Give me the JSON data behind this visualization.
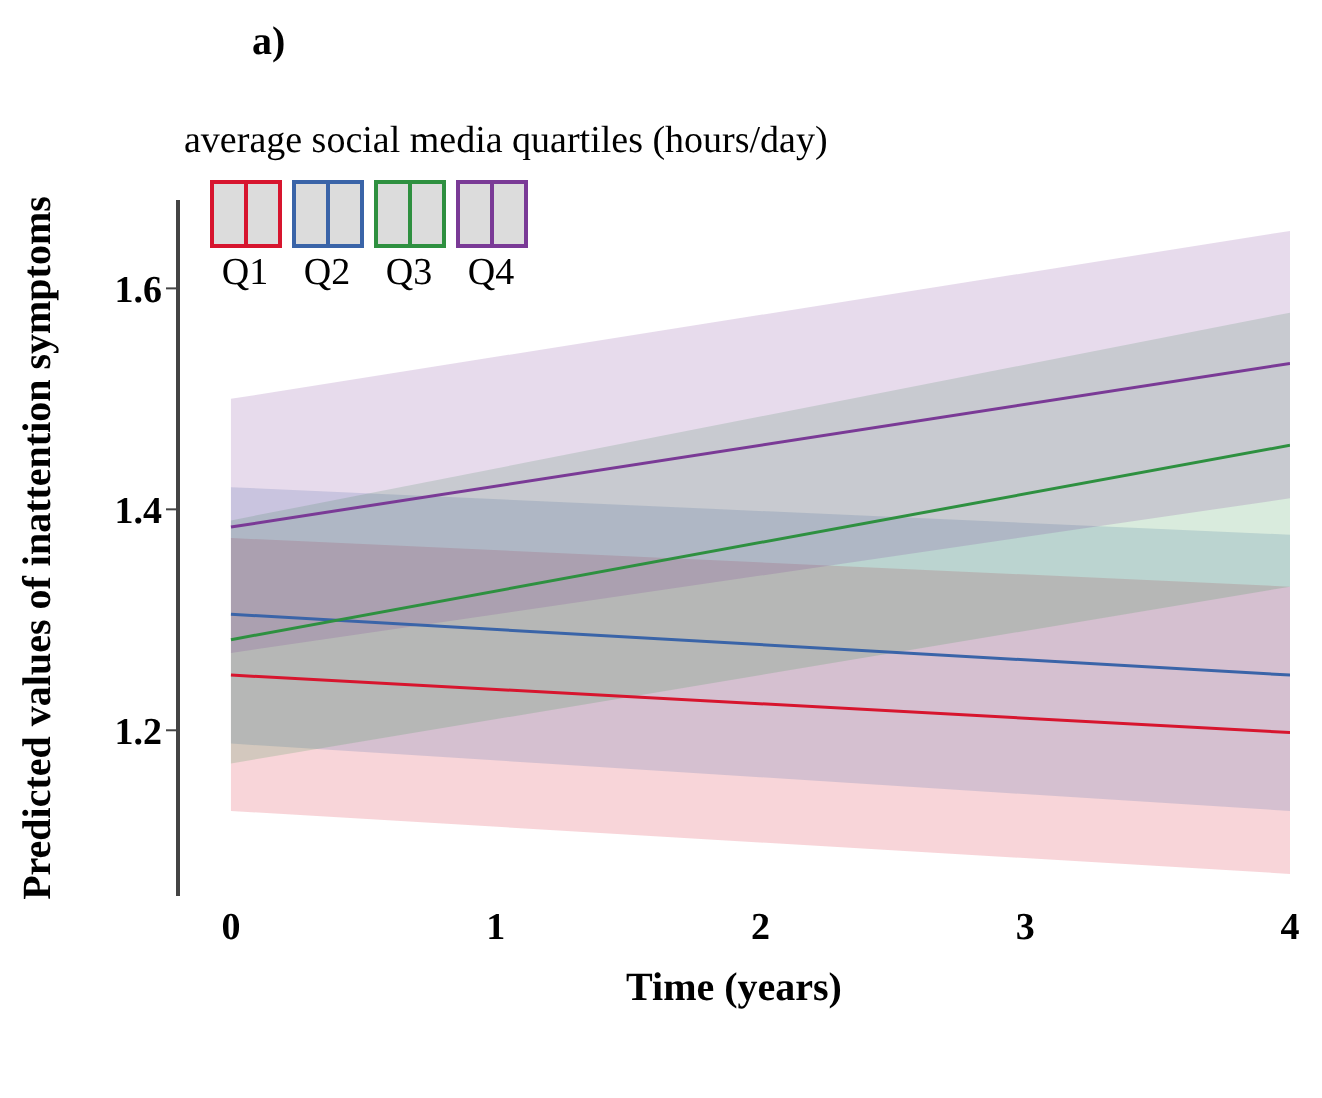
{
  "chart_data": {
    "type": "line",
    "title": "a)",
    "xlabel": "Time (years)",
    "ylabel": "Predicted values of inattention symptoms",
    "legend_title": "average social media quartiles (hours/day)",
    "legend": "top left",
    "marker": "none",
    "line_style": "solid",
    "x": [
      0,
      4
    ],
    "xlim": [
      -0.2,
      4
    ],
    "xticks": [
      0,
      1,
      2,
      3,
      4
    ],
    "ylim": [
      1.05,
      1.68
    ],
    "yticks": [
      1.2,
      1.4,
      1.6
    ],
    "series": [
      {
        "name": "Q1",
        "color": "#d7152e",
        "values": [
          1.25,
          1.198
        ],
        "lower": [
          1.127,
          1.07
        ],
        "upper": [
          1.374,
          1.33
        ]
      },
      {
        "name": "Q2",
        "color": "#3a64a8",
        "values": [
          1.305,
          1.25
        ],
        "lower": [
          1.188,
          1.127
        ],
        "upper": [
          1.42,
          1.377
        ]
      },
      {
        "name": "Q3",
        "color": "#2e9040",
        "values": [
          1.282,
          1.458
        ],
        "lower": [
          1.17,
          1.33
        ],
        "upper": [
          1.39,
          1.578
        ]
      },
      {
        "name": "Q4",
        "color": "#7a3a96",
        "values": [
          1.384,
          1.532
        ],
        "lower": [
          1.27,
          1.41
        ],
        "upper": [
          1.5,
          1.652
        ]
      }
    ]
  }
}
